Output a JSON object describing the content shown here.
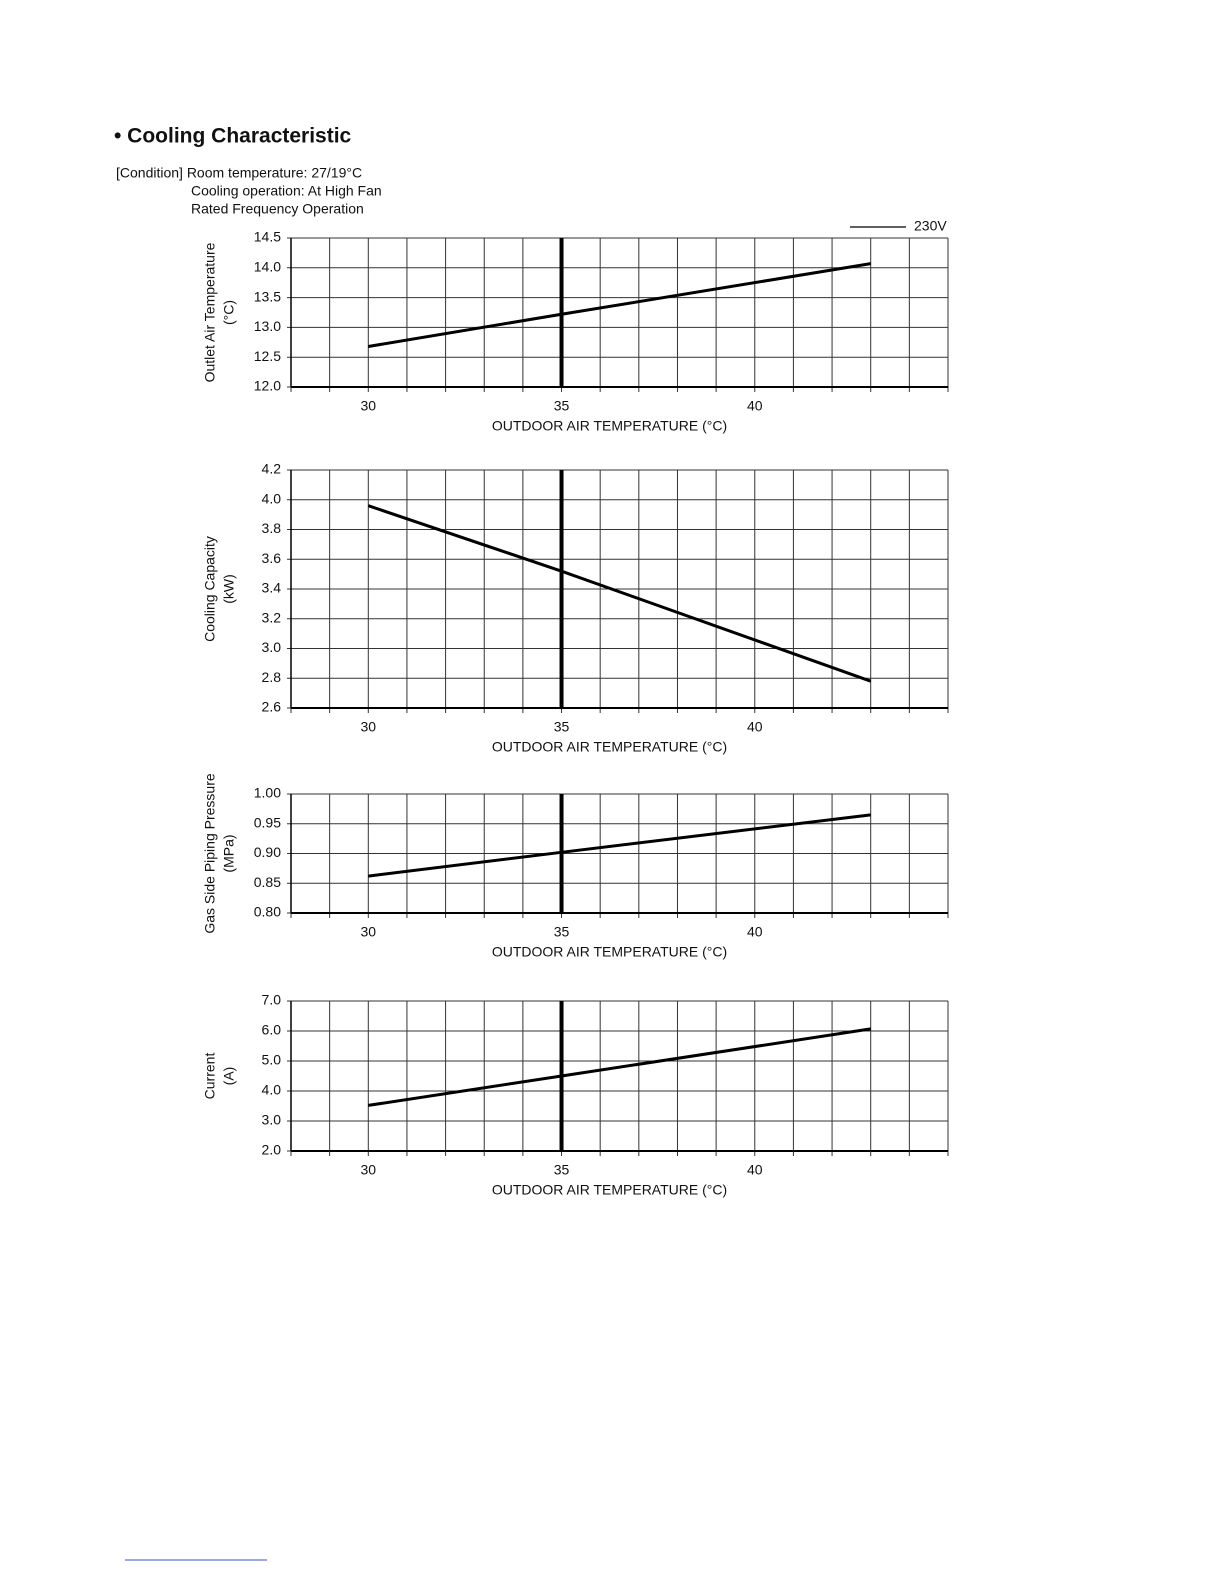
{
  "header": {
    "title": "• Cooling Characteristic",
    "conditions": [
      "[Condition] Room temperature: 27/19°C",
      "Cooling operation: At High Fan",
      "Rated Frequency Operation"
    ],
    "legend": "230V"
  },
  "chart_data": [
    {
      "type": "line",
      "ylabel": [
        "Outlet Air Temperature",
        "(°C)"
      ],
      "xlabel": "OUTDOOR AIR TEMPERATURE (°C)",
      "x": [
        30,
        35,
        43
      ],
      "values": [
        12.68,
        13.22,
        14.07
      ],
      "color": "#000000",
      "xlim": [
        28,
        45
      ],
      "xticks": [
        30,
        35,
        40
      ],
      "x_grid_step": 1,
      "highlight_x": 35,
      "ylim": [
        12.0,
        14.5
      ],
      "yticks": [
        {
          "value": 12.0,
          "label": "12.0"
        },
        12.5,
        {
          "value": 13.0,
          "label": "13.0"
        },
        13.5,
        {
          "value": 14.0,
          "label": "14.0"
        },
        14.5
      ],
      "grid": true
    },
    {
      "type": "line",
      "ylabel": [
        "Cooling Capacity",
        "(kW)"
      ],
      "xlabel": "OUTDOOR AIR TEMPERATURE (°C)",
      "x": [
        30,
        35,
        43
      ],
      "values": [
        3.96,
        3.52,
        2.78
      ],
      "color": "#000000",
      "xlim": [
        28,
        45
      ],
      "xticks": [
        30,
        35,
        40
      ],
      "x_grid_step": 1,
      "highlight_x": 35,
      "ylim": [
        2.6,
        4.2
      ],
      "yticks": [
        2.6,
        2.8,
        {
          "value": 3.0,
          "label": "3.0"
        },
        3.2,
        3.4,
        3.6,
        3.8,
        {
          "value": 4.0,
          "label": "4.0"
        },
        4.2
      ],
      "grid": true
    },
    {
      "type": "line",
      "ylabel": [
        "Gas Side Piping Pressure",
        "(MPa)"
      ],
      "xlabel": "OUTDOOR AIR TEMPERATURE (°C)",
      "x": [
        30,
        35,
        43
      ],
      "values": [
        0.862,
        0.902,
        0.965
      ],
      "color": "#000000",
      "xlim": [
        28,
        45
      ],
      "xticks": [
        30,
        35,
        40
      ],
      "x_grid_step": 1,
      "highlight_x": 35,
      "ylim": [
        0.8,
        1.0
      ],
      "yticks": [
        {
          "value": 0.8,
          "label": "0.80"
        },
        {
          "value": 0.85,
          "label": "0.85"
        },
        {
          "value": 0.9,
          "label": "0.90"
        },
        {
          "value": 0.95,
          "label": "0.95"
        },
        {
          "value": 1.0,
          "label": "1.00"
        }
      ],
      "grid": true
    },
    {
      "type": "line",
      "ylabel": [
        "Current",
        "(A)"
      ],
      "xlabel": "OUTDOOR AIR TEMPERATURE (°C)",
      "x": [
        30,
        35,
        43
      ],
      "values": [
        3.52,
        4.5,
        6.07
      ],
      "color": "#000000",
      "xlim": [
        28,
        45
      ],
      "xticks": [
        30,
        35,
        40
      ],
      "x_grid_step": 1,
      "highlight_x": 35,
      "ylim": [
        2.0,
        7.0
      ],
      "yticks": [
        {
          "value": 2.0,
          "label": "2.0"
        },
        {
          "value": 3.0,
          "label": "3.0"
        },
        {
          "value": 4.0,
          "label": "4.0"
        },
        {
          "value": 5.0,
          "label": "5.0"
        },
        {
          "value": 6.0,
          "label": "6.0"
        },
        {
          "value": 7.0,
          "label": "7.0"
        }
      ],
      "grid": true
    }
  ]
}
